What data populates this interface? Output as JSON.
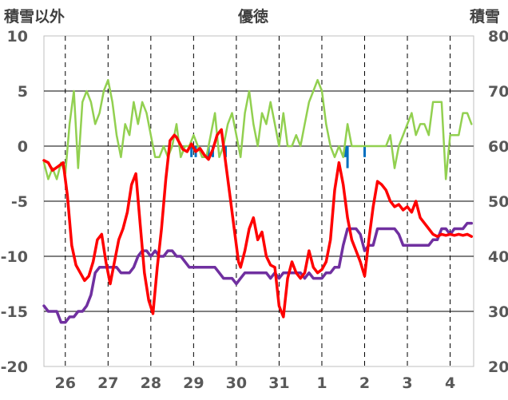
{
  "chart_data": {
    "type": "line",
    "title": "優徳",
    "left_axis_label": "積雪以外",
    "right_axis_label": "積雪",
    "left_ylim": [
      -20,
      10
    ],
    "left_ticks": [
      10,
      5,
      0,
      -5,
      -10,
      -15,
      -20
    ],
    "left_tick_labels": [
      "10",
      "5",
      "0",
      "-5",
      "-10",
      "-15",
      "-20"
    ],
    "right_ylim": [
      20,
      80
    ],
    "right_ticks": [
      80,
      70,
      60,
      50,
      40,
      30,
      20
    ],
    "right_tick_labels": [
      "80",
      "70",
      "60",
      "50",
      "40",
      "30",
      "20"
    ],
    "day_labels": [
      "26",
      "27",
      "28",
      "29",
      "30",
      "31",
      "1",
      "2",
      "3",
      "4"
    ],
    "x_range_days": [
      25.5,
      35.55
    ],
    "grid": "horizontal solid at 5, vertical dashed at day centres",
    "colors": {
      "temperature": "#ff0000",
      "snow_depth": "#7030a0",
      "wind": "#92d050",
      "precipitation": "#0070c0",
      "zero_line": "#808080",
      "grid": "#000000"
    },
    "series": [
      {
        "key": "temperature",
        "axis": "left",
        "x": [
          25.5,
          25.6,
          25.7,
          25.85,
          25.95,
          26.05,
          26.15,
          26.25,
          26.35,
          26.45,
          26.55,
          26.65,
          26.75,
          26.85,
          26.95,
          27.05,
          27.15,
          27.25,
          27.35,
          27.45,
          27.55,
          27.65,
          27.75,
          27.85,
          27.95,
          28.05,
          28.15,
          28.25,
          28.35,
          28.45,
          28.55,
          28.6,
          28.75,
          28.85,
          28.95,
          29.05,
          29.15,
          29.25,
          29.35,
          29.45,
          29.55,
          29.65,
          29.75,
          29.85,
          29.95,
          30.05,
          30.1,
          30.2,
          30.3,
          30.4,
          30.5,
          30.6,
          30.7,
          30.8,
          30.9,
          31.0,
          31.1,
          31.2,
          31.3,
          31.4,
          31.5,
          31.6,
          31.7,
          31.8,
          31.9,
          32.0,
          32.1,
          32.2,
          32.3,
          32.4,
          32.5,
          32.6,
          32.7,
          32.8,
          32.9,
          33.0,
          33.1,
          33.2,
          33.3,
          33.4,
          33.5,
          33.6,
          33.7,
          33.8,
          33.9,
          34.0,
          34.1,
          34.2,
          34.3,
          34.4,
          34.5,
          34.6,
          34.7,
          34.8,
          34.9,
          35.0,
          35.1,
          35.2,
          35.3,
          35.4,
          35.5
        ],
        "values": [
          -1.3,
          -1.5,
          -2.2,
          -1.8,
          -1.5,
          -4.5,
          -9.0,
          -10.8,
          -11.5,
          -12.2,
          -11.8,
          -10.5,
          -8.5,
          -8.0,
          -10.5,
          -12.5,
          -10.5,
          -8.5,
          -7.5,
          -6.0,
          -3.5,
          -2.5,
          -7.0,
          -11.5,
          -14.0,
          -15.2,
          -11.0,
          -7.5,
          -3.0,
          0.5,
          1.0,
          0.8,
          -0.3,
          -0.5,
          0.2,
          -0.5,
          -0.2,
          -0.8,
          -1.2,
          -0.3,
          1.0,
          1.5,
          -1.5,
          -4.5,
          -7.5,
          -10.5,
          -11.0,
          -9.5,
          -7.5,
          -6.5,
          -8.5,
          -7.8,
          -10.0,
          -10.8,
          -11.0,
          -14.5,
          -15.5,
          -12.0,
          -10.5,
          -11.5,
          -12.0,
          -11.5,
          -9.5,
          -11.0,
          -11.5,
          -11.2,
          -10.5,
          -8.5,
          -4.0,
          -1.5,
          -3.5,
          -6.5,
          -8.5,
          -9.5,
          -10.5,
          -11.8,
          -8.5,
          -5.5,
          -3.2,
          -3.5,
          -4.0,
          -5.0,
          -5.5,
          -5.3,
          -5.8,
          -5.5,
          -6.0,
          -5.0,
          -6.5,
          -7.0,
          -7.5,
          -8.0,
          -8.2,
          -8.0,
          -8.1,
          -8.0,
          -8.1,
          -8.0,
          -8.1,
          -8.0,
          -8.2
        ]
      },
      {
        "key": "snow_depth",
        "axis": "right",
        "x": [
          25.5,
          25.6,
          25.7,
          25.8,
          25.9,
          26.0,
          26.1,
          26.2,
          26.3,
          26.4,
          26.5,
          26.6,
          26.7,
          26.8,
          26.9,
          27.0,
          27.1,
          27.2,
          27.3,
          27.4,
          27.5,
          27.6,
          27.7,
          27.8,
          27.9,
          28.0,
          28.1,
          28.2,
          28.3,
          28.4,
          28.5,
          28.6,
          28.7,
          28.8,
          28.9,
          29.0,
          29.1,
          29.2,
          29.3,
          29.4,
          29.5,
          29.6,
          29.7,
          29.8,
          29.9,
          30.0,
          30.1,
          30.2,
          30.3,
          30.4,
          30.5,
          30.6,
          30.7,
          30.8,
          30.9,
          31.0,
          31.1,
          31.2,
          31.3,
          31.4,
          31.5,
          31.6,
          31.7,
          31.8,
          31.9,
          32.0,
          32.1,
          32.2,
          32.3,
          32.4,
          32.5,
          32.6,
          32.7,
          32.8,
          32.9,
          33.0,
          33.1,
          33.2,
          33.3,
          33.4,
          33.5,
          33.6,
          33.7,
          33.8,
          33.9,
          34.0,
          34.1,
          34.2,
          34.3,
          34.4,
          34.5,
          34.6,
          34.7,
          34.8,
          34.9,
          35.0,
          35.1,
          35.2,
          35.3,
          35.4,
          35.5
        ],
        "values": [
          31,
          30,
          30,
          30,
          28,
          28,
          29,
          29,
          30,
          30,
          31,
          33,
          37,
          38,
          38,
          38,
          38,
          38,
          37,
          37,
          37,
          38,
          40,
          41,
          41,
          40,
          41,
          40,
          40,
          41,
          41,
          40,
          40,
          39,
          38,
          38,
          38,
          38,
          38,
          38,
          38,
          37,
          36,
          36,
          36,
          35,
          36,
          37,
          37,
          37,
          37,
          37,
          37,
          36,
          37,
          36,
          37,
          37,
          37,
          37,
          37,
          36,
          37,
          36,
          36,
          36,
          37,
          37,
          38,
          38,
          42,
          45,
          45,
          45,
          44,
          41,
          42,
          42,
          45,
          45,
          45,
          45,
          45,
          44,
          42,
          42,
          42,
          42,
          42,
          42,
          42,
          43,
          43,
          45,
          45,
          44,
          45,
          45,
          45,
          46,
          46
        ]
      },
      {
        "key": "wind",
        "axis": "left",
        "x": [
          25.5,
          25.6,
          25.7,
          25.8,
          25.9,
          26.0,
          26.1,
          26.2,
          26.3,
          26.4,
          26.5,
          26.6,
          26.7,
          26.8,
          26.9,
          27.0,
          27.1,
          27.2,
          27.3,
          27.4,
          27.5,
          27.6,
          27.7,
          27.8,
          27.9,
          28.0,
          28.1,
          28.2,
          28.3,
          28.4,
          28.5,
          28.6,
          28.7,
          28.8,
          28.9,
          29.0,
          29.1,
          29.2,
          29.3,
          29.4,
          29.5,
          29.6,
          29.7,
          29.8,
          29.9,
          30.0,
          30.1,
          30.2,
          30.3,
          30.4,
          30.5,
          30.6,
          30.7,
          30.8,
          30.9,
          31.0,
          31.1,
          31.2,
          31.3,
          31.4,
          31.5,
          31.6,
          31.7,
          31.8,
          31.9,
          32.0,
          32.1,
          32.2,
          32.3,
          32.4,
          32.5,
          32.6,
          32.7,
          32.8,
          32.9,
          33.0,
          33.1,
          33.2,
          33.3,
          33.4,
          33.5,
          33.6,
          33.7,
          33.8,
          33.9,
          34.0,
          34.1,
          34.2,
          34.3,
          34.4,
          34.5,
          34.6,
          34.7,
          34.8,
          34.9,
          35.0,
          35.1,
          35.2,
          35.3,
          35.4,
          35.5
        ],
        "values": [
          -1.5,
          -3.0,
          -2.0,
          -3.0,
          -1.5,
          -2.5,
          2.0,
          5.0,
          -2.0,
          4.0,
          5.0,
          4.0,
          2.0,
          3.0,
          5.0,
          6.0,
          4.0,
          1.0,
          -1.0,
          2.0,
          1.0,
          4.0,
          2.0,
          4.0,
          3.0,
          1.0,
          -1.0,
          -1.0,
          0.0,
          -1.0,
          0.0,
          2.0,
          -1.0,
          0.0,
          0.0,
          1.0,
          0.0,
          -1.0,
          -1.0,
          1.0,
          3.0,
          -1.0,
          0.0,
          2.0,
          3.0,
          1.0,
          -1.0,
          3.0,
          5.0,
          2.0,
          0.0,
          3.0,
          2.0,
          4.0,
          2.0,
          0.0,
          3.0,
          0.0,
          0.0,
          1.0,
          0.0,
          2.0,
          4.0,
          5.0,
          6.0,
          5.0,
          2.0,
          0.0,
          -1.0,
          0.0,
          -1.0,
          2.0,
          0.0,
          0.0,
          0.0,
          0.0,
          0.0,
          0.0,
          0.0,
          0.0,
          0.0,
          1.0,
          -2.0,
          0.0,
          1.0,
          2.0,
          3.0,
          1.0,
          2.0,
          2.0,
          1.0,
          4.0,
          4.0,
          4.0,
          -3.0,
          1.0,
          1.0,
          1.0,
          3.0,
          3.0,
          2.0
        ]
      },
      {
        "key": "precipitation",
        "axis": "left",
        "x": [
          28.95,
          29.05,
          29.35,
          29.45,
          29.75,
          32.55,
          32.6,
          33.0
        ],
        "values": [
          -1.0,
          -1.0,
          -1.0,
          -1.0,
          -1.0,
          -1.0,
          -2.0,
          -1.0
        ]
      }
    ]
  }
}
